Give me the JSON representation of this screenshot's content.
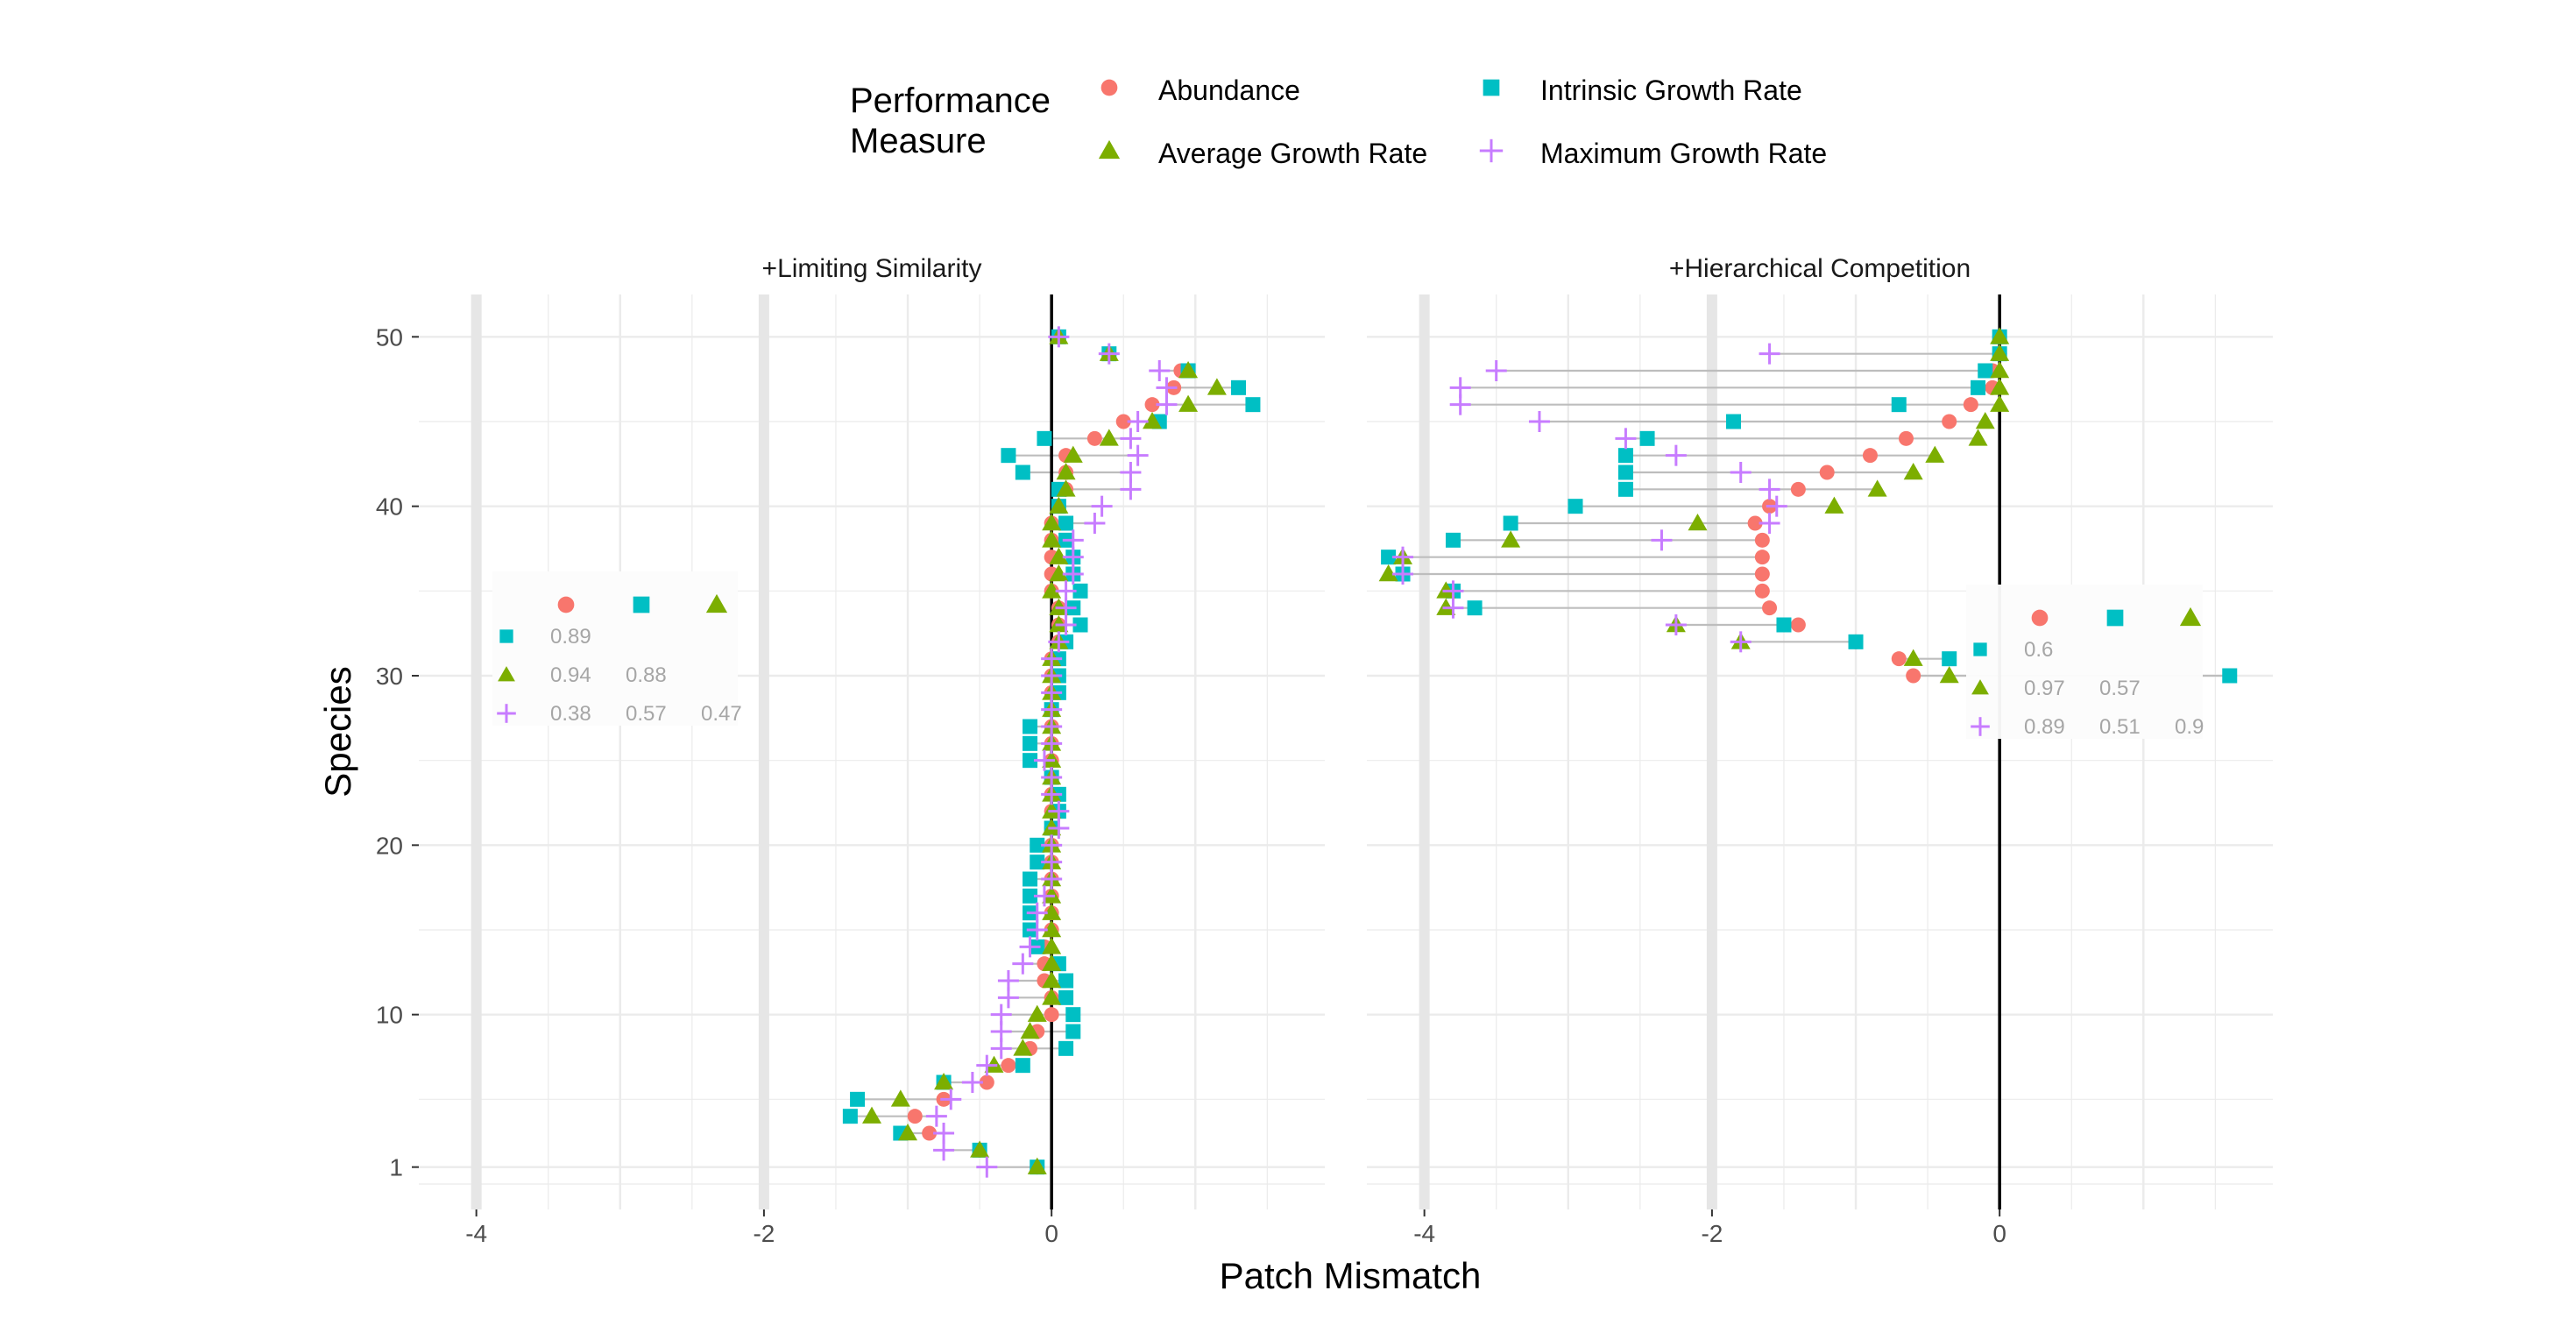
{
  "chart_data": {
    "type": "scatter",
    "xlabel": "Patch Mismatch",
    "ylabel": "Species",
    "xlim": [
      -4.4,
      1.9
    ],
    "ylim": [
      -1.5,
      52.5
    ],
    "x_ticks": [
      -4,
      -2,
      0
    ],
    "x_tick_labels": [
      "-4",
      "-2",
      "0"
    ],
    "y_ticks": [
      1,
      10,
      20,
      30,
      40,
      50
    ],
    "y_tick_labels": [
      "1",
      "10",
      "20",
      "30",
      "40",
      "50"
    ],
    "grid": true,
    "legend": {
      "title_lines": [
        "Performance",
        "Measure"
      ],
      "placement": "top",
      "entries": [
        {
          "label": "Abundance",
          "shape": "circle",
          "color": "#F8766D"
        },
        {
          "label": "Intrinsic Growth Rate",
          "shape": "square",
          "color": "#00BFC4"
        },
        {
          "label": "Average Growth Rate",
          "shape": "triangle",
          "color": "#7CAE00"
        },
        {
          "label": "Maximum Growth Rate",
          "shape": "plus",
          "color": "#C77CFF"
        }
      ]
    },
    "panels": [
      {
        "title": "+Limiting Similarity",
        "highlight_x": [
          -4,
          -2
        ],
        "correlation_inset": {
          "placement": "left",
          "header_shapes": [
            "circle",
            "square",
            "triangle"
          ],
          "rows": [
            {
              "shape": "square",
              "values": [
                "0.89"
              ]
            },
            {
              "shape": "triangle",
              "values": [
                "0.94",
                "0.88"
              ]
            },
            {
              "shape": "plus",
              "values": [
                "0.38",
                "0.57",
                "0.47"
              ]
            }
          ]
        },
        "series": [
          {
            "name": "Abundance",
            "y": [
              1,
              2,
              3,
              4,
              5,
              6,
              7,
              8,
              9,
              10,
              11,
              12,
              13,
              14,
              15,
              16,
              17,
              18,
              19,
              20,
              21,
              22,
              23,
              24,
              25,
              26,
              27,
              28,
              29,
              30,
              31,
              32,
              33,
              34,
              35,
              36,
              37,
              38,
              39,
              40,
              41,
              42,
              43,
              44,
              45,
              46,
              47,
              48,
              49,
              50
            ],
            "x": [
              -0.1,
              -0.5,
              -0.85,
              -0.95,
              -0.75,
              -0.45,
              -0.3,
              -0.15,
              -0.1,
              0.0,
              0.0,
              -0.05,
              -0.05,
              -0.05,
              0.0,
              0.0,
              0.0,
              0.0,
              0.0,
              0.0,
              0.0,
              0.0,
              0.0,
              0.0,
              0.0,
              0.0,
              0.0,
              0.0,
              0.0,
              0.0,
              0.0,
              0.05,
              0.05,
              0.05,
              0.0,
              0.0,
              0.0,
              0.0,
              0.0,
              0.05,
              0.1,
              0.1,
              0.1,
              0.3,
              0.5,
              0.7,
              0.85,
              0.9,
              0.4,
              0.05
            ]
          },
          {
            "name": "Intrinsic Growth Rate",
            "y": [
              1,
              2,
              3,
              4,
              5,
              6,
              7,
              8,
              9,
              10,
              11,
              12,
              13,
              14,
              15,
              16,
              17,
              18,
              19,
              20,
              21,
              22,
              23,
              24,
              25,
              26,
              27,
              28,
              29,
              30,
              31,
              32,
              33,
              34,
              35,
              36,
              37,
              38,
              39,
              40,
              41,
              42,
              43,
              44,
              45,
              46,
              47,
              48,
              49,
              50
            ],
            "x": [
              -0.1,
              -0.5,
              -1.05,
              -1.4,
              -1.35,
              -0.75,
              -0.2,
              0.1,
              0.15,
              0.15,
              0.1,
              0.1,
              0.05,
              -0.1,
              -0.15,
              -0.15,
              -0.15,
              -0.15,
              -0.1,
              -0.1,
              0.0,
              0.05,
              0.05,
              0.0,
              -0.15,
              -0.15,
              -0.15,
              0.0,
              0.05,
              0.05,
              0.05,
              0.1,
              0.2,
              0.15,
              0.2,
              0.15,
              0.15,
              0.1,
              0.1,
              0.05,
              0.05,
              -0.2,
              -0.3,
              -0.05,
              0.75,
              1.4,
              1.3,
              0.95,
              0.4,
              0.05
            ]
          },
          {
            "name": "Average Growth Rate",
            "y": [
              1,
              2,
              3,
              4,
              5,
              6,
              7,
              8,
              9,
              10,
              11,
              12,
              13,
              14,
              15,
              16,
              17,
              18,
              19,
              20,
              21,
              22,
              23,
              24,
              25,
              26,
              27,
              28,
              29,
              30,
              31,
              32,
              33,
              34,
              35,
              36,
              37,
              38,
              39,
              40,
              41,
              42,
              43,
              44,
              45,
              46,
              47,
              48,
              49,
              50
            ],
            "x": [
              -0.1,
              -0.5,
              -1.0,
              -1.25,
              -1.05,
              -0.75,
              -0.4,
              -0.2,
              -0.15,
              -0.1,
              0.0,
              0.0,
              0.0,
              0.0,
              0.0,
              0.0,
              0.0,
              0.0,
              0.0,
              0.0,
              0.0,
              0.0,
              0.0,
              0.0,
              0.0,
              0.0,
              0.0,
              0.0,
              0.0,
              0.0,
              0.0,
              0.05,
              0.05,
              0.05,
              0.0,
              0.05,
              0.05,
              0.0,
              0.0,
              0.05,
              0.1,
              0.1,
              0.15,
              0.4,
              0.7,
              0.95,
              1.15,
              0.95,
              0.4,
              0.05
            ]
          },
          {
            "name": "Maximum Growth Rate",
            "y": [
              1,
              2,
              3,
              4,
              5,
              6,
              7,
              8,
              9,
              10,
              11,
              12,
              13,
              14,
              15,
              16,
              17,
              18,
              19,
              20,
              21,
              22,
              23,
              24,
              25,
              26,
              27,
              28,
              29,
              30,
              31,
              32,
              33,
              34,
              35,
              36,
              37,
              38,
              39,
              40,
              41,
              42,
              43,
              44,
              45,
              46,
              47,
              48,
              49,
              50
            ],
            "x": [
              -0.45,
              -0.75,
              -0.75,
              -0.8,
              -0.7,
              -0.55,
              -0.45,
              -0.35,
              -0.35,
              -0.35,
              -0.3,
              -0.3,
              -0.2,
              -0.15,
              -0.1,
              -0.1,
              -0.05,
              0.0,
              0.0,
              0.0,
              0.05,
              0.05,
              0.0,
              0.0,
              -0.05,
              0.0,
              0.0,
              0.0,
              0.0,
              0.0,
              0.0,
              0.05,
              0.1,
              0.1,
              0.1,
              0.15,
              0.15,
              0.15,
              0.3,
              0.35,
              0.55,
              0.55,
              0.6,
              0.55,
              0.6,
              0.8,
              0.8,
              0.75,
              0.4,
              0.05
            ]
          }
        ]
      },
      {
        "title": "+Hierarchical Competition",
        "highlight_x": [
          -4,
          -2
        ],
        "correlation_inset": {
          "placement": "right",
          "header_shapes": [
            "circle",
            "square",
            "triangle"
          ],
          "rows": [
            {
              "shape": "square",
              "values": [
                "0.6"
              ]
            },
            {
              "shape": "triangle",
              "values": [
                "0.97",
                "0.57"
              ]
            },
            {
              "shape": "plus",
              "values": [
                "0.89",
                "0.51",
                "0.9"
              ]
            }
          ]
        },
        "series": [
          {
            "name": "Abundance",
            "y": [
              30,
              31,
              32,
              33,
              34,
              35,
              36,
              37,
              38,
              39,
              40,
              41,
              42,
              43,
              44,
              45,
              46,
              47,
              48,
              49,
              50
            ],
            "x": [
              -0.6,
              -0.7,
              -1.0,
              -1.4,
              -1.6,
              -1.65,
              -1.65,
              -1.65,
              -1.65,
              -1.7,
              -1.6,
              -1.4,
              -1.2,
              -0.9,
              -0.65,
              -0.35,
              -0.2,
              -0.05,
              -0.05,
              0.0,
              0.0
            ]
          },
          {
            "name": "Intrinsic Growth Rate",
            "y": [
              30,
              31,
              32,
              33,
              34,
              35,
              36,
              37,
              38,
              39,
              40,
              41,
              42,
              43,
              44,
              45,
              46,
              47,
              48,
              49,
              50
            ],
            "x": [
              1.6,
              -0.35,
              -1.0,
              -1.5,
              -3.65,
              -3.8,
              -4.15,
              -4.25,
              -3.8,
              -3.4,
              -2.95,
              -2.6,
              -2.6,
              -2.6,
              -2.45,
              -1.85,
              -0.7,
              -0.15,
              -0.1,
              0.0,
              0.0
            ]
          },
          {
            "name": "Average Growth Rate",
            "y": [
              30,
              31,
              32,
              33,
              34,
              35,
              36,
              37,
              38,
              39,
              40,
              41,
              42,
              43,
              44,
              45,
              46,
              47,
              48,
              49,
              50
            ],
            "x": [
              -0.35,
              -0.6,
              -1.8,
              -2.25,
              -3.85,
              -3.85,
              -4.25,
              -4.15,
              -3.4,
              -2.1,
              -1.15,
              -0.85,
              -0.6,
              -0.45,
              -0.15,
              -0.1,
              0.0,
              0.0,
              0.0,
              0.0,
              0.0
            ]
          },
          {
            "name": "Maximum Growth Rate",
            "y": [
              32,
              33,
              34,
              35,
              36,
              37,
              38,
              39,
              40,
              41,
              42,
              43,
              44,
              45,
              46,
              47,
              48,
              49
            ],
            "x": [
              -1.8,
              -2.25,
              -3.8,
              -3.8,
              -4.15,
              -4.15,
              -2.35,
              -1.6,
              -1.55,
              -1.6,
              -1.8,
              -2.25,
              -2.6,
              -3.2,
              -3.75,
              -3.75,
              -3.5,
              -1.6
            ]
          }
        ]
      }
    ]
  }
}
